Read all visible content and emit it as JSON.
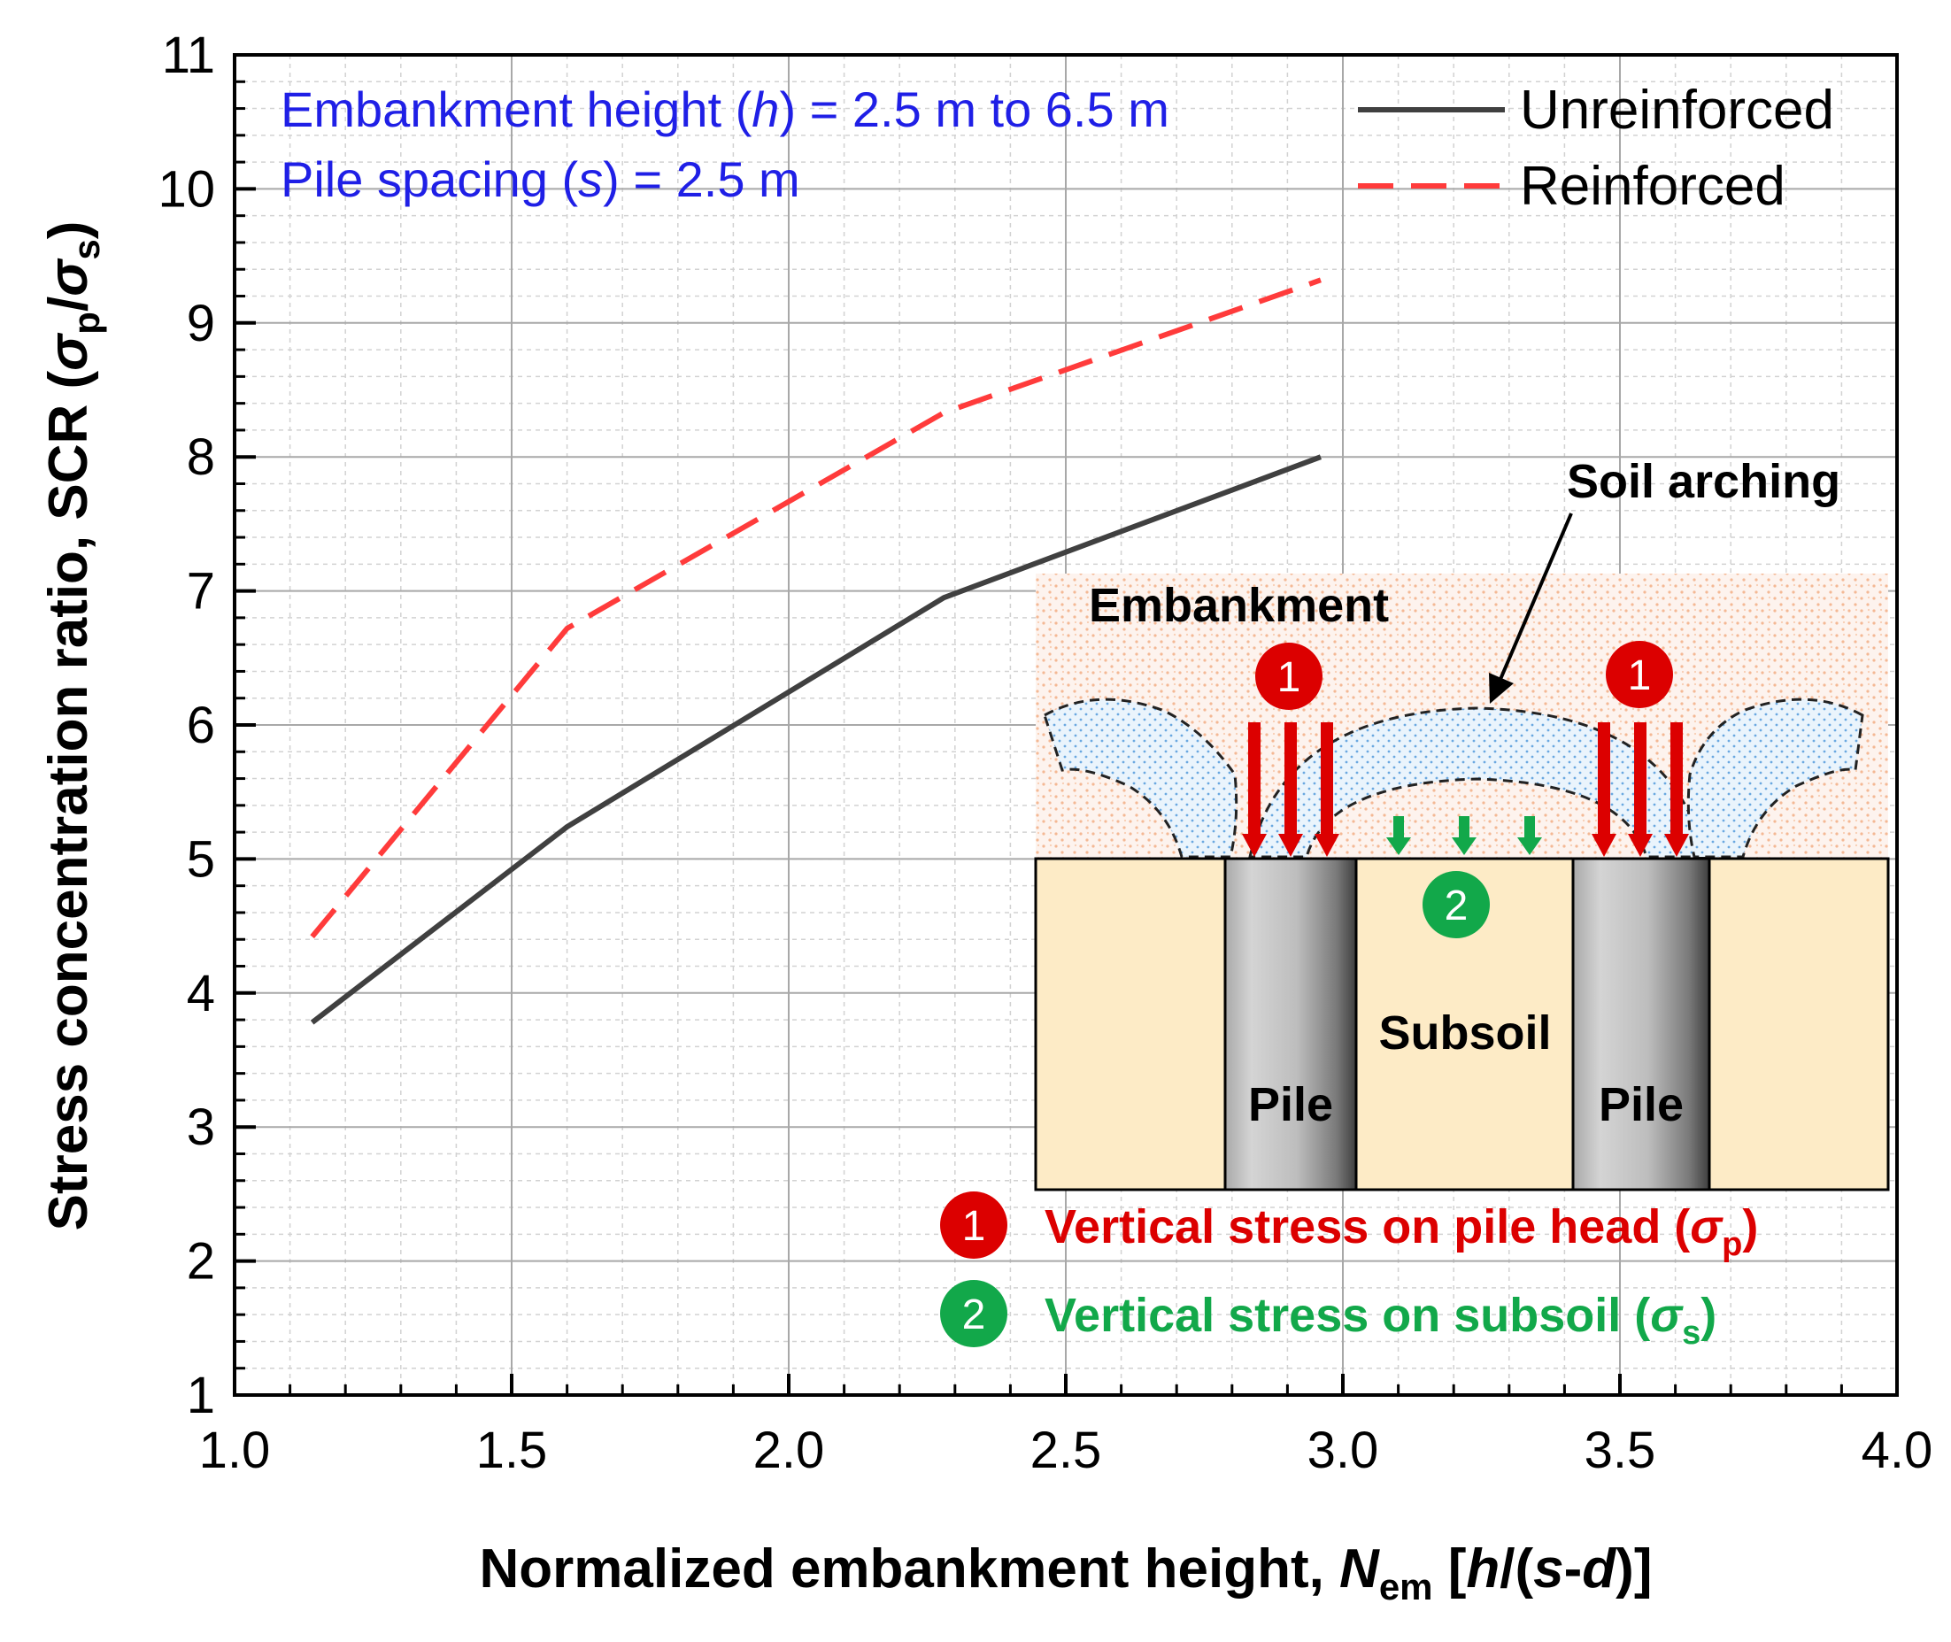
{
  "chart_data": {
    "type": "line",
    "xlabel_prefix": "Normalized embankment height, ",
    "xlabel_N": "N",
    "xlabel_sub": "em",
    "xlabel_bracket_open": " [",
    "xlabel_h": "h",
    "xlabel_mid": "/(",
    "xlabel_s": "s",
    "xlabel_dash": "-",
    "xlabel_d": "d",
    "xlabel_close": ")]",
    "ylabel_main": "Stress concentration ratio, SCR (",
    "ylabel_sigma": "σ",
    "ylabel_sub_p": "p",
    "ylabel_slash": "/",
    "ylabel_sub_s": "s",
    "ylabel_close": ")",
    "xlim": [
      1.0,
      4.0
    ],
    "ylim": [
      1,
      11
    ],
    "x_ticks": [
      "1.0",
      "1.5",
      "2.0",
      "2.5",
      "3.0",
      "3.5",
      "4.0"
    ],
    "y_ticks": [
      "1",
      "2",
      "3",
      "4",
      "5",
      "6",
      "7",
      "8",
      "9",
      "10",
      "11"
    ],
    "grid": true,
    "legend_position": "top-right",
    "series": [
      {
        "name": "Unreinforced",
        "color": "#404040",
        "style": "solid",
        "x": [
          1.14,
          1.6,
          2.28,
          2.96
        ],
        "y": [
          3.78,
          5.24,
          6.95,
          8.0
        ]
      },
      {
        "name": "Reinforced",
        "color": "#ff3b3b",
        "style": "dashed",
        "x": [
          1.14,
          1.6,
          2.28,
          2.96
        ],
        "y": [
          4.42,
          6.72,
          8.33,
          9.32
        ]
      }
    ]
  },
  "annotations": {
    "height_prefix": "Embankment height (",
    "height_var": "h",
    "height_suffix": ") = 2.5 m to 6.5 m",
    "spacing_prefix": "Pile spacing (",
    "spacing_var": "s",
    "spacing_suffix": ") = 2.5 m"
  },
  "inset": {
    "soil_arching": "Soil arching",
    "embankment": "Embankment",
    "subsoil": "Subsoil",
    "pile_left": "Pile",
    "pile_right": "Pile",
    "badge_1": "1",
    "badge_2": "2",
    "legend_1_text": "Vertical stress on pile head (",
    "legend_1_sigma": "σ",
    "legend_1_sub": "p",
    "legend_1_close": ")",
    "legend_2_text": "Vertical stress on subsoil (",
    "legend_2_sigma": "σ",
    "legend_2_sub": "s",
    "legend_2_close": ")"
  },
  "colors": {
    "unreinforced": "#404040",
    "reinforced": "#ff3b3b",
    "annotation_blue": "#1f1fe6",
    "pile_stress_red": "#dc0000",
    "subsoil_stress_green": "#12a84a",
    "subsoil_fill": "#fdebc6",
    "embankment_dot": "#f4b894",
    "arch_dot": "#6aa8e0"
  }
}
